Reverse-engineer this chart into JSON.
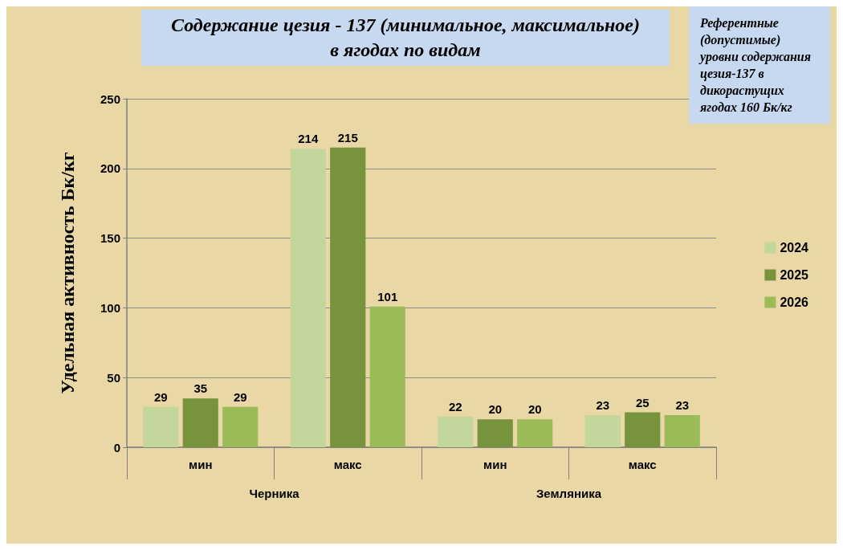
{
  "chart_data": {
    "type": "bar",
    "title": "Содержание цезия - 137 (минимальное, максимальное) в ягодах по видам",
    "ylabel": "Удельная активность Бк/кг",
    "categories": [
      "мин",
      "макс",
      "мин",
      "макс"
    ],
    "series": [
      {
        "name": "2024",
        "color": "#c3d69b",
        "values": [
          29,
          214,
          22,
          23
        ]
      },
      {
        "name": "2025",
        "color": "#77933c",
        "values": [
          35,
          215,
          20,
          25
        ]
      },
      {
        "name": "2026",
        "color": "#9bbb59",
        "values": [
          29,
          101,
          20,
          23
        ]
      }
    ],
    "ylim": [
      0,
      250
    ],
    "yticks": [
      0,
      50,
      100,
      150,
      200,
      250
    ],
    "grid": "y",
    "legend": "right",
    "data_labels": true,
    "annotations": [
      "Черника",
      "Земляника",
      "Референтные (допустимые) уровни содержания цезия-137 в дикорастущих ягодах 160 Бк/кг"
    ]
  }
}
